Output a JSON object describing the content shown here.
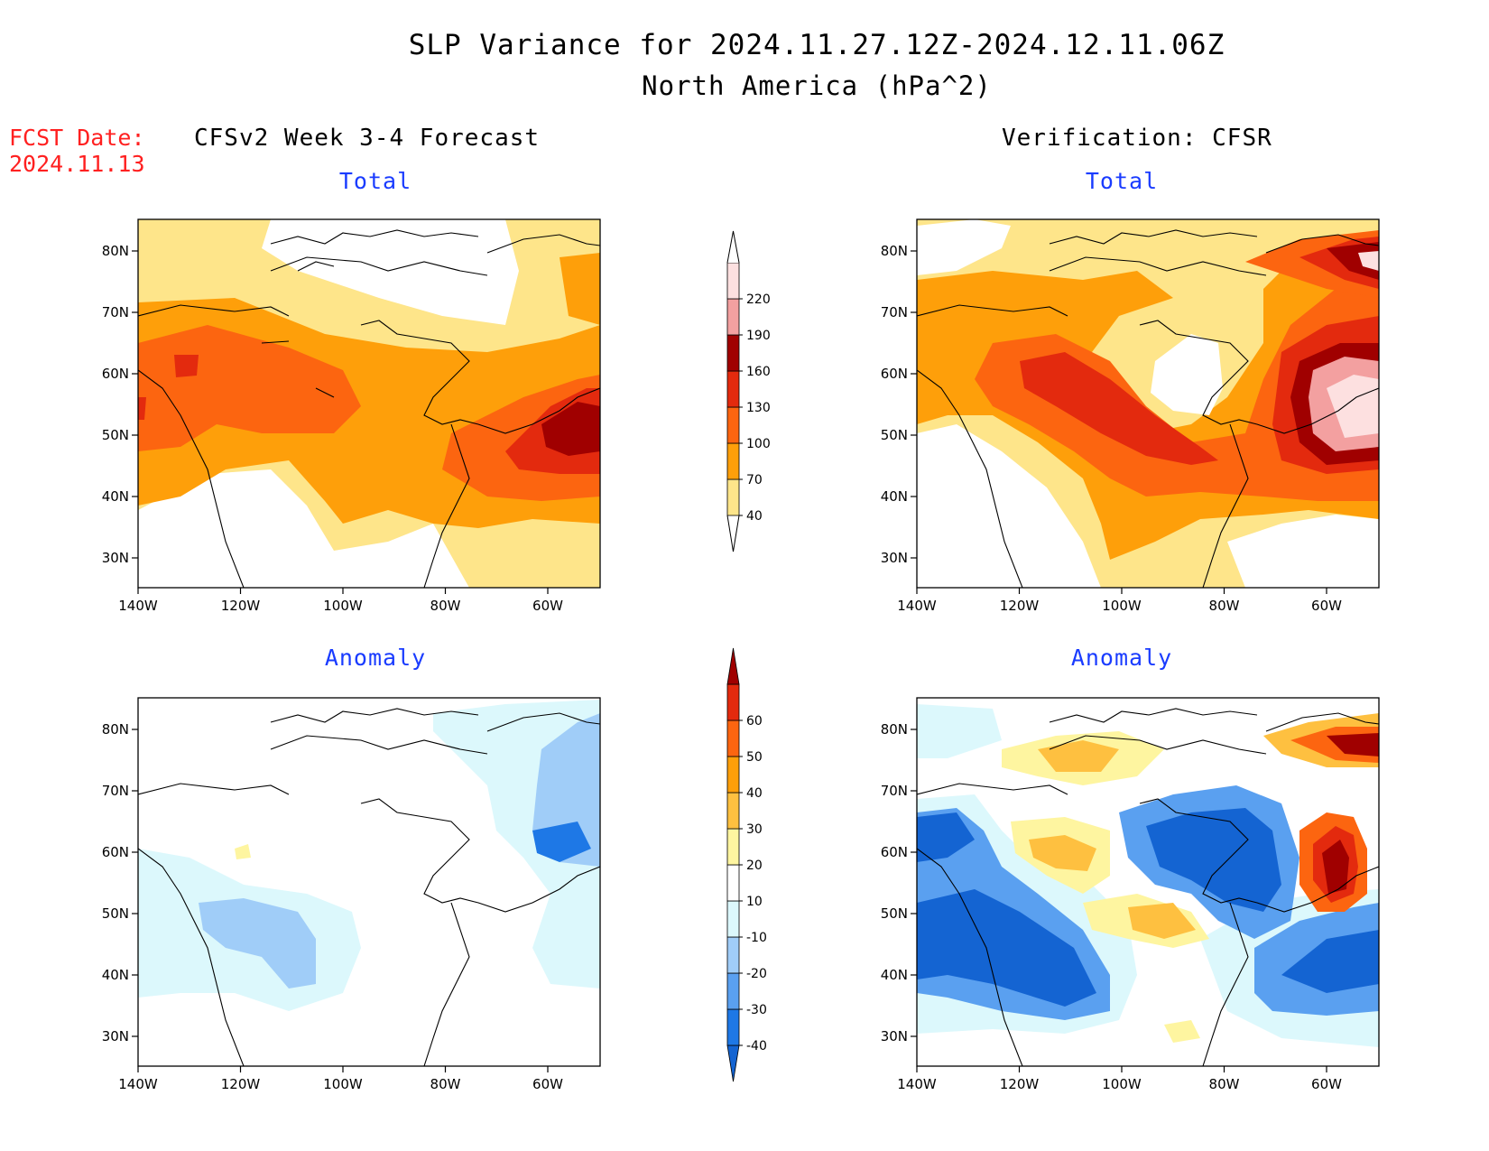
{
  "header": {
    "title": "SLP Variance for 2024.11.27.12Z-2024.12.11.06Z",
    "subtitle": "North America (hPa^2)",
    "fcst_label": "FCST Date:",
    "fcst_date": "2024.11.13"
  },
  "columns": {
    "left": "CFSv2 Week 3-4 Forecast",
    "right": "Verification: CFSR"
  },
  "panels": {
    "tl": "Total",
    "tr": "Total",
    "bl": "Anomaly",
    "br": "Anomaly"
  },
  "axes": {
    "lon_labels": [
      "140W",
      "120W",
      "100W",
      "80W",
      "60W"
    ],
    "lat_labels": [
      "80N",
      "70N",
      "60N",
      "50N",
      "40N",
      "30N"
    ]
  },
  "colorbars": {
    "total": {
      "levels": [
        "40",
        "70",
        "100",
        "130",
        "160",
        "190",
        "220"
      ],
      "colors": [
        "#fee58a",
        "#fe9f0a",
        "#fc6510",
        "#e32a0e",
        "#a00000",
        "#f3a0a0",
        "#fde0e0"
      ]
    },
    "anomaly": {
      "levels": [
        "-40",
        "-30",
        "-20",
        "-10",
        "10",
        "20",
        "30",
        "40",
        "50",
        "60"
      ],
      "colors": [
        "#1464d2",
        "#1e78e6",
        "#5aa0f0",
        "#a0cdf8",
        "#dcf8fc",
        "#ffffff",
        "#fef5a0",
        "#fec040",
        "#fe9f0a",
        "#fc6510",
        "#e32a0e",
        "#a00000"
      ]
    }
  },
  "legend_colors": {
    "ocean_land_bg": "#ffffff",
    "coast": "#000000",
    "subtitle_blue": "#1a3cff",
    "fcst_red": "#ff2020"
  }
}
